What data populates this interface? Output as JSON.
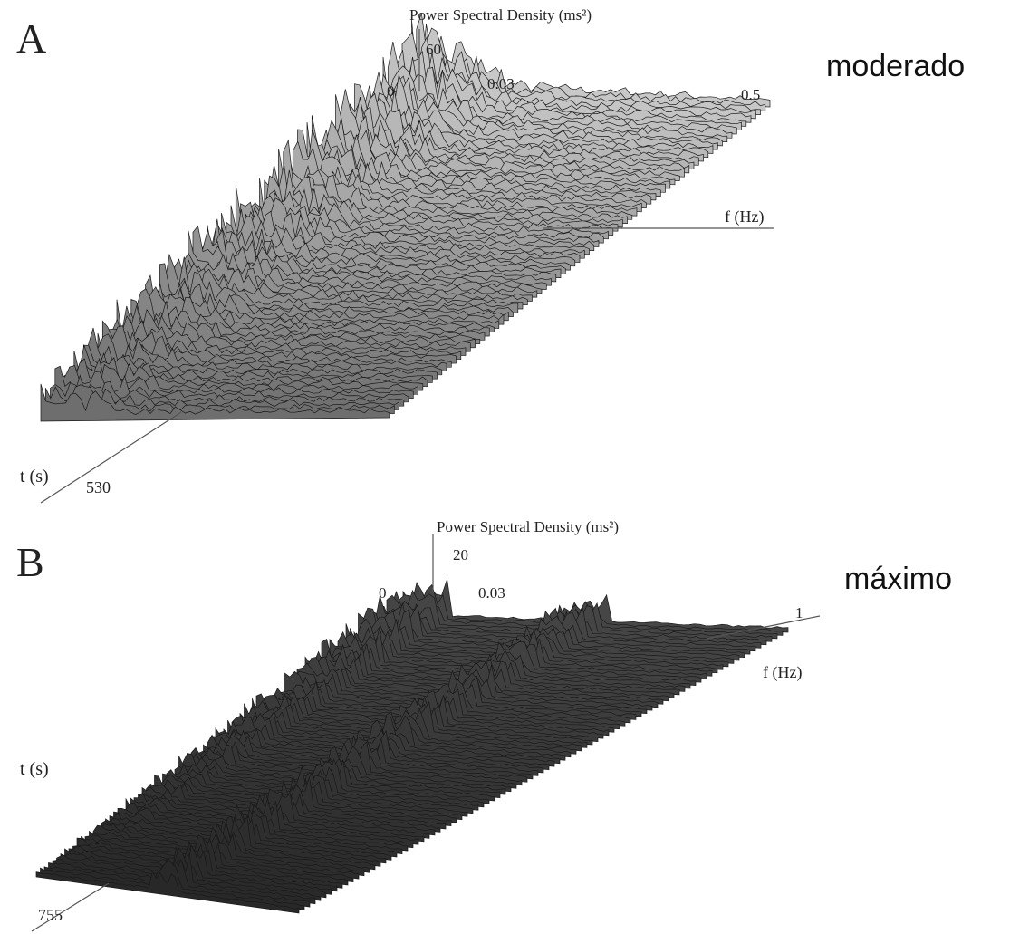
{
  "panels": [
    {
      "letter": "A",
      "annotation": "moderado",
      "z_label": "Power Spectral Density (ms²)",
      "z_tick": "60",
      "f_ticks": [
        "0",
        "0.03",
        "0.5"
      ],
      "f_label": "f (Hz)",
      "t_label": "t (s)",
      "t_tick": "530"
    },
    {
      "letter": "B",
      "annotation": "máximo",
      "z_label": "Power Spectral Density (ms²)",
      "z_tick": "20",
      "f_ticks": [
        "0",
        "0.03",
        "1"
      ],
      "f_label": "f (Hz)",
      "t_label": "t (s)",
      "t_tick": "755"
    }
  ]
}
